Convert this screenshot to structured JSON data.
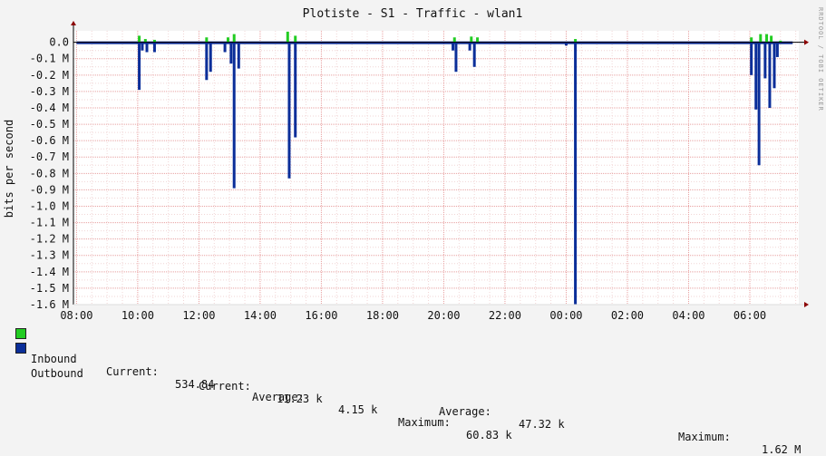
{
  "chart_data": {
    "type": "area",
    "title": "Plotiste - S1 - Traffic - wlan1",
    "ylabel": "bits per second",
    "xlabel": "",
    "y_ticks": [
      "0.0",
      "-0.1 M",
      "-0.2 M",
      "-0.3 M",
      "-0.4 M",
      "-0.5 M",
      "-0.6 M",
      "-0.7 M",
      "-0.8 M",
      "-0.9 M",
      "-1.0 M",
      "-1.1 M",
      "-1.2 M",
      "-1.3 M",
      "-1.4 M",
      "-1.5 M",
      "-1.6 M"
    ],
    "y_tick_values": [
      0,
      -0.1,
      -0.2,
      -0.3,
      -0.4,
      -0.5,
      -0.6,
      -0.7,
      -0.8,
      -0.9,
      -1.0,
      -1.1,
      -1.2,
      -1.3,
      -1.4,
      -1.5,
      -1.6
    ],
    "x_ticks": [
      "08:00",
      "10:00",
      "12:00",
      "14:00",
      "16:00",
      "18:00",
      "20:00",
      "22:00",
      "00:00",
      "02:00",
      "04:00",
      "06:00"
    ],
    "x_tick_hours": [
      8,
      10,
      12,
      14,
      16,
      18,
      20,
      22,
      24,
      26,
      28,
      30
    ],
    "xlim_hours": [
      7.9,
      31.6
    ],
    "ylim_M": [
      -1.6,
      0.07
    ],
    "grid": true,
    "units": "M = million bits per second",
    "colors": {
      "inbound": "#22cc22",
      "outbound": "#0b2e99",
      "grid": "#e8a0a0",
      "axis": "#000000",
      "background": "#ffffff",
      "frame": "#f3f3f3"
    },
    "series": [
      {
        "name": "Inbound",
        "direction": "positive",
        "points_hours_M": [
          [
            10.05,
            0.04
          ],
          [
            10.25,
            0.02
          ],
          [
            10.55,
            0.015
          ],
          [
            12.25,
            0.03
          ],
          [
            12.95,
            0.03
          ],
          [
            13.15,
            0.05
          ],
          [
            14.9,
            0.065
          ],
          [
            15.15,
            0.04
          ],
          [
            20.35,
            0.03
          ],
          [
            20.9,
            0.035
          ],
          [
            21.1,
            0.03
          ],
          [
            24.3,
            0.02
          ],
          [
            30.05,
            0.03
          ],
          [
            30.35,
            0.05
          ],
          [
            30.55,
            0.05
          ],
          [
            30.7,
            0.04
          ],
          [
            31.0,
            0.01
          ]
        ]
      },
      {
        "name": "Outbound",
        "direction": "negative",
        "points_hours_M": [
          [
            10.05,
            -0.29
          ],
          [
            10.15,
            -0.05
          ],
          [
            10.3,
            -0.06
          ],
          [
            10.55,
            -0.06
          ],
          [
            12.25,
            -0.23
          ],
          [
            12.38,
            -0.18
          ],
          [
            12.85,
            -0.06
          ],
          [
            13.05,
            -0.13
          ],
          [
            13.15,
            -0.89
          ],
          [
            13.3,
            -0.16
          ],
          [
            14.95,
            -0.83
          ],
          [
            15.15,
            -0.58
          ],
          [
            20.3,
            -0.05
          ],
          [
            20.4,
            -0.18
          ],
          [
            20.85,
            -0.05
          ],
          [
            21.0,
            -0.15
          ],
          [
            24.0,
            -0.02
          ],
          [
            24.3,
            -1.6
          ],
          [
            30.05,
            -0.2
          ],
          [
            30.2,
            -0.41
          ],
          [
            30.3,
            -0.75
          ],
          [
            30.5,
            -0.22
          ],
          [
            30.65,
            -0.4
          ],
          [
            30.8,
            -0.28
          ],
          [
            30.9,
            -0.09
          ]
        ]
      }
    ]
  },
  "legend": [
    {
      "name": "Inbound",
      "current_label": "Current:",
      "current": "534.84",
      "average_label": "Average:",
      "average": "4.15 k",
      "maximum_label": "Maximum:",
      "maximum": "60.83 k"
    },
    {
      "name": "Outbound",
      "current_label": "Current:",
      "current": "11.23 k",
      "average_label": "Average:",
      "average": "47.32 k",
      "maximum_label": "Maximum:",
      "maximum": "1.62 M"
    }
  ],
  "watermark": "RRDTOOL / TOBI OETIKER"
}
